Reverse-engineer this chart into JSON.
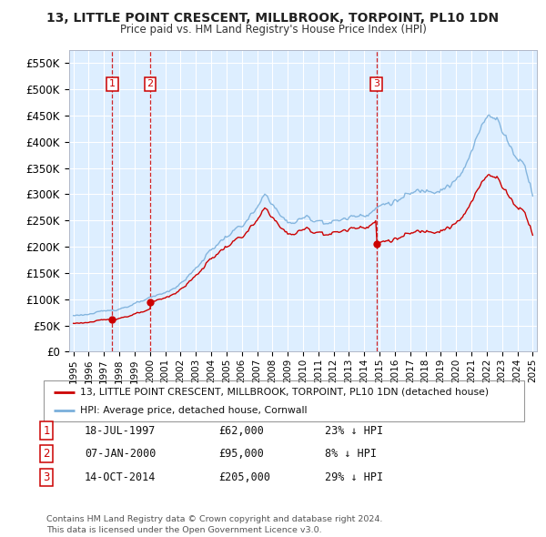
{
  "title": "13, LITTLE POINT CRESCENT, MILLBROOK, TORPOINT, PL10 1DN",
  "subtitle": "Price paid vs. HM Land Registry's House Price Index (HPI)",
  "property_label": "13, LITTLE POINT CRESCENT, MILLBROOK, TORPOINT, PL10 1DN (detached house)",
  "hpi_label": "HPI: Average price, detached house, Cornwall",
  "sale_dates": [
    1997.538,
    2000.019,
    2014.786
  ],
  "sale_prices": [
    62000,
    95000,
    205000
  ],
  "sale_labels": [
    "1",
    "2",
    "3"
  ],
  "vline_dates": [
    1997.538,
    2000.019,
    2014.786
  ],
  "table_rows": [
    [
      "1",
      "18-JUL-1997",
      "£62,000",
      "23% ↓ HPI"
    ],
    [
      "2",
      "07-JAN-2000",
      "£95,000",
      "8% ↓ HPI"
    ],
    [
      "3",
      "14-OCT-2014",
      "£205,000",
      "29% ↓ HPI"
    ]
  ],
  "footer": "Contains HM Land Registry data © Crown copyright and database right 2024.\nThis data is licensed under the Open Government Licence v3.0.",
  "red_color": "#cc0000",
  "blue_color": "#7aafdb",
  "bg_color": "#ddeeff",
  "grid_color": "#ffffff",
  "ylim": [
    0,
    575000
  ],
  "yticks": [
    0,
    50000,
    100000,
    150000,
    200000,
    250000,
    300000,
    350000,
    400000,
    450000,
    500000,
    550000
  ],
  "xlim_start": 1994.7,
  "xlim_end": 2025.3
}
